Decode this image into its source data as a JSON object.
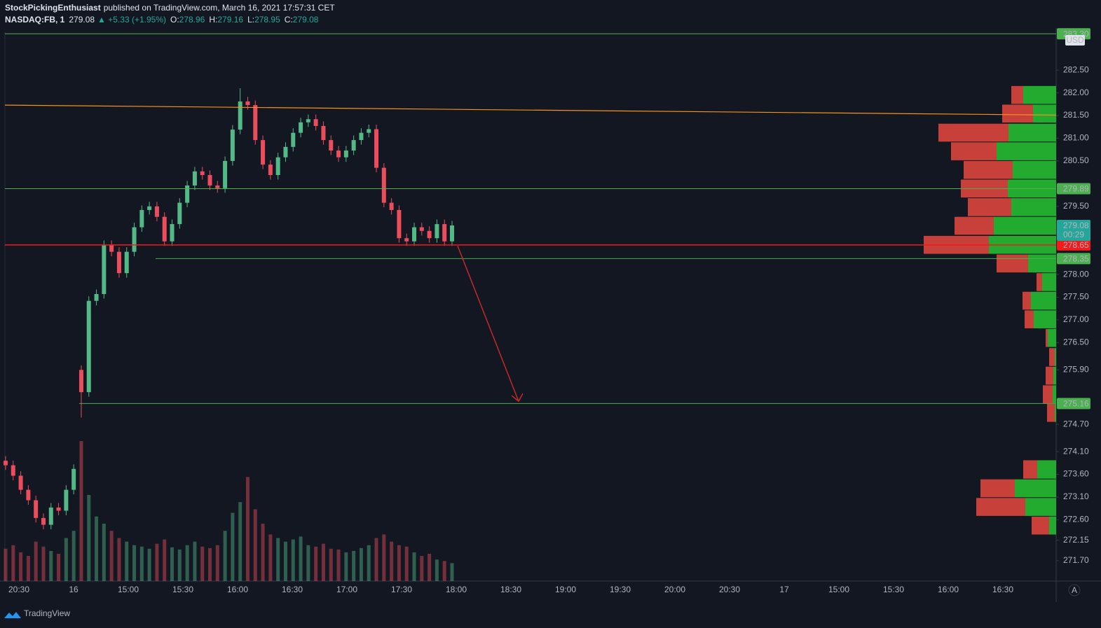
{
  "header": {
    "author": "StockPickingEnthusiast",
    "published": "published on TradingView.com, March 16, 2021 17:57:31 CET",
    "symbol": "NASDAQ:FB, 1",
    "price": "279.08",
    "change": "▲ +5.33 (+1.95%)",
    "ohlc": [
      {
        "label": "O:",
        "value": "278.96"
      },
      {
        "label": "H:",
        "value": "279.16"
      },
      {
        "label": "L:",
        "value": "278.95"
      },
      {
        "label": "C:",
        "value": "279.08"
      }
    ]
  },
  "chart_data": {
    "type": "candlestick",
    "currency": "USD",
    "up_color": "#53b987",
    "down_color": "#eb4d5c",
    "ylim": [
      271.25,
      283.35
    ],
    "yticks": [
      {
        "value": 282.5,
        "label": "282.50"
      },
      {
        "value": 282,
        "label": "282.00"
      },
      {
        "value": 281.5,
        "label": "281.50"
      },
      {
        "value": 281,
        "label": "281.00"
      },
      {
        "value": 280.5,
        "label": "280.50"
      },
      {
        "value": 279.5,
        "label": "279.50"
      },
      {
        "value": 278,
        "label": "278.00"
      },
      {
        "value": 277.5,
        "label": "277.50"
      },
      {
        "value": 277,
        "label": "277.00"
      },
      {
        "value": 276.5,
        "label": "276.50"
      },
      {
        "value": 275.9,
        "label": "275.90"
      },
      {
        "value": 274.7,
        "label": "274.70"
      },
      {
        "value": 274.1,
        "label": "274.10"
      },
      {
        "value": 273.6,
        "label": "273.60"
      },
      {
        "value": 273.1,
        "label": "273.10"
      },
      {
        "value": 272.6,
        "label": "272.60"
      },
      {
        "value": 272.15,
        "label": "272.15"
      },
      {
        "value": 271.7,
        "label": "271.70"
      }
    ],
    "xticks": [
      "20:30",
      "16",
      "15:00",
      "15:30",
      "16:00",
      "16:30",
      "17:00",
      "17:30",
      "18:00",
      "18:30",
      "19:00",
      "19:30",
      "20:00",
      "20:30",
      "17",
      "15:00",
      "15:30",
      "16:00",
      "16:30"
    ],
    "open": [
      273.9,
      273.8,
      273.57,
      273.26,
      273.03,
      272.64,
      272.49,
      272.87,
      272.8,
      273.26,
      275.9,
      275.41,
      277.42,
      277.57,
      278.65,
      278.5,
      278.03,
      278.5,
      279.04,
      279.42,
      279.5,
      279.27,
      278.73,
      279.11,
      279.58,
      279.96,
      280.27,
      280.19,
      279.96,
      279.9,
      280.5,
      281.19,
      281.81,
      281.73,
      280.96,
      280.42,
      280.19,
      280.58,
      280.81,
      281.12,
      281.35,
      281.42,
      281.27,
      280.96,
      280.73,
      280.58,
      280.73,
      280.96,
      281.12,
      281.2,
      280.35,
      279.58,
      279.42,
      278.8,
      278.73,
      279.04,
      278.96,
      278.8,
      279.11,
      278.73
    ],
    "high": [
      274.0,
      273.9,
      273.67,
      273.36,
      273.13,
      272.74,
      272.97,
      272.97,
      273.36,
      273.82,
      276.0,
      277.52,
      277.67,
      278.75,
      278.75,
      278.6,
      278.6,
      279.14,
      279.52,
      279.6,
      279.6,
      279.37,
      279.21,
      279.68,
      280.06,
      280.37,
      280.37,
      280.29,
      280.06,
      280.6,
      281.29,
      282.1,
      281.91,
      281.83,
      281.06,
      280.52,
      280.68,
      280.91,
      281.22,
      281.45,
      281.52,
      281.52,
      281.37,
      281.06,
      280.83,
      280.83,
      281.06,
      281.22,
      281.3,
      281.3,
      280.45,
      279.68,
      279.52,
      278.9,
      279.14,
      279.14,
      279.06,
      279.21,
      279.21,
      279.18
    ],
    "low": [
      273.7,
      273.47,
      273.16,
      272.93,
      272.54,
      272.39,
      272.39,
      272.7,
      272.7,
      273.16,
      274.85,
      275.31,
      277.32,
      277.47,
      278.4,
      277.93,
      277.93,
      278.4,
      278.94,
      279.32,
      279.17,
      278.63,
      278.63,
      279.01,
      279.48,
      279.86,
      280.09,
      279.86,
      279.8,
      279.8,
      280.4,
      281.09,
      281.63,
      280.86,
      280.32,
      280.09,
      280.09,
      280.48,
      280.71,
      281.02,
      281.25,
      281.17,
      280.86,
      280.63,
      280.48,
      280.48,
      280.63,
      280.86,
      281.02,
      280.25,
      279.48,
      279.32,
      278.7,
      278.63,
      278.63,
      278.86,
      278.7,
      278.7,
      278.63,
      278.63
    ],
    "close": [
      273.8,
      273.57,
      273.26,
      273.03,
      272.64,
      272.49,
      272.87,
      272.8,
      273.26,
      273.72,
      275.41,
      277.42,
      277.57,
      278.65,
      278.5,
      278.03,
      278.5,
      279.04,
      279.42,
      279.5,
      279.27,
      278.73,
      279.11,
      279.58,
      279.96,
      280.27,
      280.19,
      279.96,
      279.9,
      280.5,
      281.19,
      281.81,
      281.73,
      280.96,
      280.42,
      280.19,
      280.58,
      280.81,
      281.12,
      281.35,
      281.42,
      281.27,
      280.96,
      280.73,
      280.58,
      280.73,
      280.96,
      281.12,
      281.2,
      280.35,
      279.58,
      279.42,
      278.8,
      278.73,
      279.04,
      278.96,
      278.8,
      279.11,
      278.73,
      279.08
    ],
    "volume": [
      45,
      50,
      40,
      35,
      55,
      48,
      42,
      38,
      60,
      70,
      195,
      120,
      90,
      80,
      70,
      60,
      55,
      50,
      48,
      45,
      52,
      58,
      47,
      44,
      50,
      55,
      48,
      46,
      50,
      70,
      95,
      110,
      145,
      100,
      80,
      65,
      60,
      55,
      58,
      62,
      50,
      48,
      52,
      45,
      44,
      40,
      42,
      46,
      50,
      60,
      65,
      55,
      50,
      48,
      40,
      35,
      38,
      30,
      28,
      25
    ],
    "levels": [
      {
        "value": 283.3,
        "label": "283.30",
        "color": "#4caf50"
      },
      {
        "value": 279.89,
        "label": "279.89",
        "color": "#4caf50"
      },
      {
        "value": 278.65,
        "label": "278.65",
        "color": "#f21a1a"
      },
      {
        "value": 278.35,
        "label": "278.35",
        "color": "#4caf50"
      },
      {
        "value": 275.16,
        "label": "275.16",
        "color": "#4caf50"
      }
    ],
    "last_price": {
      "value": 279.08,
      "label": "279.08",
      "countdown": "00:29",
      "color": "#26a69a"
    },
    "trendline": {
      "start": 281.73,
      "end": 281.51,
      "color": "#f5921b"
    },
    "arrow": {
      "from": 278.63,
      "to": 275.21,
      "color": "#c62828"
    },
    "volume_profile": {
      "sell_color": "#c8403a",
      "buy_color": "#22ab2f",
      "prices": [
        282.15,
        281.74,
        281.32,
        280.91,
        280.5,
        280.09,
        279.68,
        279.27,
        278.85,
        278.44,
        278.03,
        277.62,
        277.21,
        276.8,
        276.38,
        275.97,
        275.56,
        275.15,
        273.91,
        273.49,
        273.08,
        272.67
      ],
      "sell": [
        17,
        44,
        100,
        65,
        70,
        67,
        62,
        56,
        93,
        45,
        8,
        12,
        13,
        3,
        8,
        11,
        14,
        11,
        20,
        49,
        70,
        25
      ],
      "buy": [
        47,
        33,
        68,
        85,
        62,
        69,
        64,
        89,
        96,
        40,
        20,
        36,
        32,
        12,
        2,
        4,
        5,
        2,
        27,
        59,
        44,
        10
      ]
    }
  },
  "footer": {
    "brand": "TradingView",
    "auto": "A"
  }
}
